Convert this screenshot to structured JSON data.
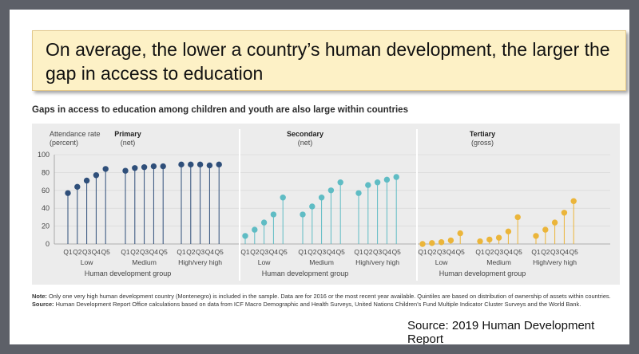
{
  "callout": {
    "line1": "On average, the lower a country’s human development, the larger the",
    "line2": "gap in access to education"
  },
  "subtitle": "Gaps in access to education among children and youth are also large within countries",
  "note": {
    "note_label": "Note:",
    "note_text": "Only one very high human development country (Montenegro) is included in the sample. Data are for 2016 or the most recent year available. Quintiles are based on distribution of ownership of assets within countries.",
    "source_label": "Source:",
    "source_text": "Human Development Report Office calculations based on data from ICF Macro Demographic and Health Surveys, United Nations Children’s Fund Multiple Indicator Cluster Surveys and the World Bank."
  },
  "attribution": "Source: 2019 Human Development Report",
  "chart_data": {
    "type": "scatter",
    "ylabel": [
      "Attendance rate",
      "(percent)"
    ],
    "ylim": [
      0,
      100
    ],
    "yticks": [
      0,
      20,
      40,
      60,
      80,
      100
    ],
    "grid": true,
    "quintile_labels": [
      "Q1",
      "Q2",
      "Q3",
      "Q4",
      "Q5"
    ],
    "group_labels": [
      "Low",
      "Medium",
      "High/very high"
    ],
    "xlabel": "Human development group",
    "panels": [
      {
        "title": "Primary",
        "subtitle": "(net)",
        "color": "#2f4f7a",
        "groups": [
          {
            "name": "Low",
            "values": [
              57,
              64,
              71,
              77,
              84
            ]
          },
          {
            "name": "Medium",
            "values": [
              82,
              85,
              86,
              87,
              87
            ]
          },
          {
            "name": "High/very high",
            "values": [
              89,
              89,
              89,
              88,
              89
            ]
          }
        ]
      },
      {
        "title": "Secondary",
        "subtitle": "(net)",
        "color": "#5fbcc4",
        "groups": [
          {
            "name": "Low",
            "values": [
              9,
              16,
              24,
              33,
              52
            ]
          },
          {
            "name": "Medium",
            "values": [
              33,
              42,
              52,
              60,
              69
            ]
          },
          {
            "name": "High/very high",
            "values": [
              57,
              66,
              69,
              72,
              75
            ]
          }
        ]
      },
      {
        "title": "Tertiary",
        "subtitle": "(gross)",
        "color": "#ebb53a",
        "groups": [
          {
            "name": "Low",
            "values": [
              0,
              1,
              2,
              4,
              12
            ]
          },
          {
            "name": "Medium",
            "values": [
              3,
              5,
              7,
              14,
              30
            ]
          },
          {
            "name": "High/very high",
            "values": [
              9,
              16,
              24,
              35,
              48
            ]
          }
        ]
      }
    ]
  }
}
